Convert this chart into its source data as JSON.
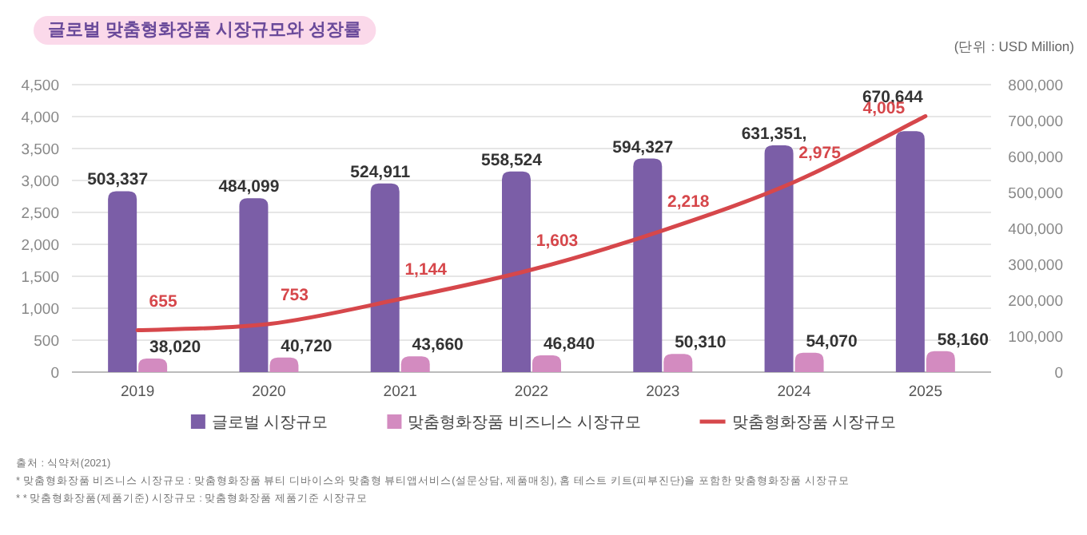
{
  "chart_data": {
    "type": "bar",
    "title": "글로벌 맞춤형화장품 시장규모와 성장률",
    "categories": [
      "2019",
      "2020",
      "2021",
      "2022",
      "2023",
      "2024",
      "2025"
    ],
    "series": [
      {
        "name": "글로벌 시장규모",
        "axis": "y2",
        "color": "#7b5ea7",
        "values": [
          503337,
          484099,
          524911,
          558524,
          594327,
          631351,
          670644
        ],
        "value_labels": [
          "503,337",
          "484,099",
          "524,911",
          "558,524",
          "594,327",
          "631,351,",
          "670,644"
        ]
      },
      {
        "name": "맞춤형화장품 비즈니스 시장규모",
        "axis": "y2",
        "color": "#d38bc0",
        "values": [
          38020,
          40720,
          43660,
          46840,
          50310,
          54070,
          58160
        ],
        "value_labels": [
          "38,020",
          "40,720",
          "43,660",
          "46,840",
          "50,310",
          "54,070",
          "58,160"
        ]
      },
      {
        "name": "맞춤형화장품 시장규모",
        "type": "line",
        "axis": "y",
        "color": "#d6474b",
        "values": [
          655,
          753,
          1144,
          1603,
          2218,
          2975,
          4005
        ],
        "value_labels": [
          "655",
          "753",
          "1,144",
          "1,603",
          "2,218",
          "2,975",
          "4,005"
        ]
      }
    ],
    "ylim": [
      0,
      4500
    ],
    "yticks": [
      0,
      500,
      {
        "value": 1000,
        "label": "1,000"
      },
      {
        "value": 1500,
        "label": "1,500"
      },
      {
        "value": 2000,
        "label": "2,000"
      },
      {
        "value": 2500,
        "label": "2,500"
      },
      {
        "value": 3000,
        "label": "3,000"
      },
      {
        "value": 3500,
        "label": "3,500"
      },
      {
        "value": 4000,
        "label": "4,000"
      },
      {
        "value": 4500,
        "label": "4,500"
      }
    ],
    "y2lim": [
      0,
      800000
    ],
    "y2ticks": [
      {
        "value": 0,
        "label": "0"
      },
      {
        "value": 100000,
        "label": "100,000"
      },
      {
        "value": 200000,
        "label": "200,000"
      },
      {
        "value": 300000,
        "label": "300,000"
      },
      {
        "value": 400000,
        "label": "400,000"
      },
      {
        "value": 500000,
        "label": "500,000"
      },
      {
        "value": 600000,
        "label": "600,000"
      },
      {
        "value": 700000,
        "label": "700,000"
      },
      {
        "value": 800000,
        "label": "800,000"
      }
    ],
    "grid": "y",
    "legend": "bottom",
    "marker": "none",
    "line_style": "solid",
    "annotations": [
      "(단위 : USD Million)",
      "출처 : 식약처(2021)",
      "* 맞춤형화장품 비즈니스 시장규모 : 맞춤형화장품 뷰티 디바이스와 맞춤형 뷰티앱서비스(설문상담, 제품매칭), 홈 테스트 키트(피부진단)을 포함한 맞춤형화장품 시장규모",
      "* * 맞춤형화장품(제품기준) 시장규모 : 맞춤형화장품 제품기준 시장규모"
    ]
  }
}
